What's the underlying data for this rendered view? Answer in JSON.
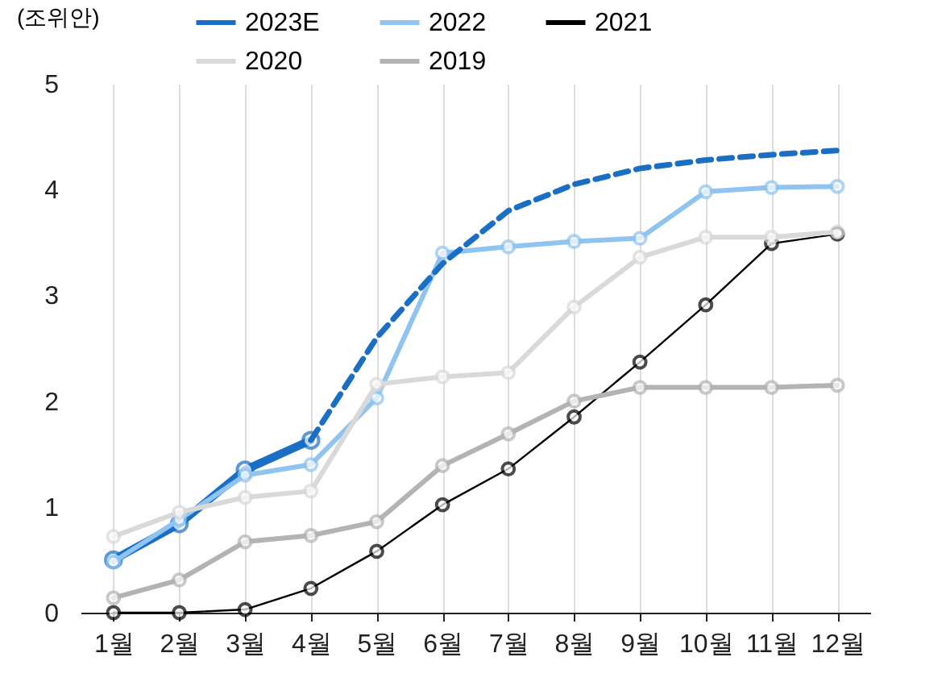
{
  "chart_data": {
    "type": "line",
    "ylabel": "(조위안)",
    "categories": [
      "1월",
      "2월",
      "3월",
      "4월",
      "5월",
      "6월",
      "7월",
      "8월",
      "9월",
      "10월",
      "11월",
      "12월"
    ],
    "series": [
      {
        "name": "2023E",
        "color": "#1a6fc4",
        "values": [
          0.5,
          0.84,
          1.35,
          1.63,
          null,
          null,
          null,
          null,
          null,
          null,
          null,
          null
        ],
        "marker": "circle",
        "line_style": "solid"
      },
      {
        "name": "2022",
        "color": "#8fc3f0",
        "values": [
          0.48,
          0.88,
          1.3,
          1.4,
          2.03,
          3.4,
          3.46,
          3.51,
          3.54,
          3.98,
          4.02,
          4.03
        ],
        "marker": "circle",
        "line_style": "solid"
      },
      {
        "name": "2021",
        "color": "#000000",
        "values": [
          0,
          0,
          0.03,
          0.23,
          0.58,
          1.02,
          1.36,
          1.85,
          2.37,
          2.91,
          3.49,
          3.58
        ],
        "marker": "circle",
        "line_style": "solid"
      },
      {
        "name": "2020",
        "color": "#d9d9d9",
        "values": [
          0.72,
          0.95,
          1.09,
          1.15,
          2.16,
          2.23,
          2.27,
          2.89,
          3.36,
          3.55,
          3.55,
          3.6
        ],
        "marker": "circle",
        "line_style": "solid"
      },
      {
        "name": "2019",
        "color": "#b3b3b3",
        "values": [
          0.14,
          0.31,
          0.67,
          0.73,
          0.86,
          1.39,
          1.69,
          2.0,
          2.13,
          2.13,
          2.13,
          2.15
        ],
        "marker": "circle",
        "line_style": "solid"
      },
      {
        "color": "#1a6fc4",
        "values": [
          null,
          null,
          null,
          1.63,
          2.6,
          3.3,
          3.8,
          4.05,
          4.2,
          4.28,
          4.33,
          4.37
        ],
        "marker": "none",
        "line_style": "dashed"
      }
    ],
    "ylim": [
      0,
      5
    ],
    "yticks": [
      0,
      1,
      2,
      3,
      4,
      5
    ],
    "grid": "x",
    "legend": "top"
  }
}
